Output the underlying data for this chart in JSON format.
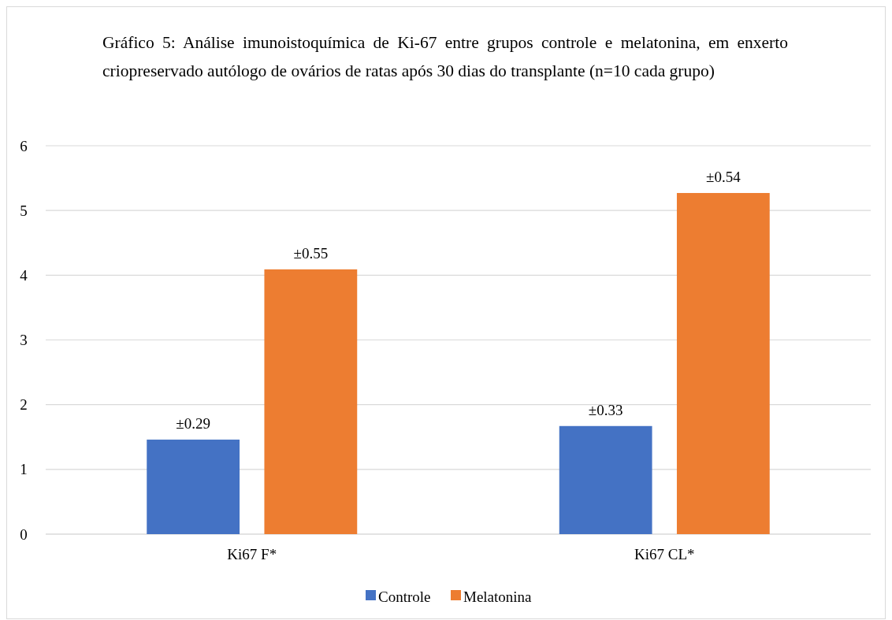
{
  "chart_data": {
    "type": "bar",
    "title": "Gráfico 5: Análise imunoistoquímica de Ki-67 entre grupos controle e melatonina, em enxerto criopreservado autólogo de ovários de ratas após 30 dias do transplante (n=10 cada grupo)",
    "categories": [
      "Ki67 F*",
      "Ki67 CL*"
    ],
    "series": [
      {
        "name": "Controle",
        "color": "#4472c4",
        "values": [
          1.46,
          1.67
        ]
      },
      {
        "name": "Melatonina",
        "color": "#ed7d31",
        "values": [
          4.09,
          5.27
        ]
      }
    ],
    "annotations": [
      "±0.29",
      "±0.33",
      "±0.55",
      "±0.54"
    ],
    "ylim": [
      0,
      6
    ],
    "yticks": [
      0,
      1,
      2,
      3,
      4,
      5,
      6
    ],
    "grid": "y",
    "legend": "bottom"
  }
}
